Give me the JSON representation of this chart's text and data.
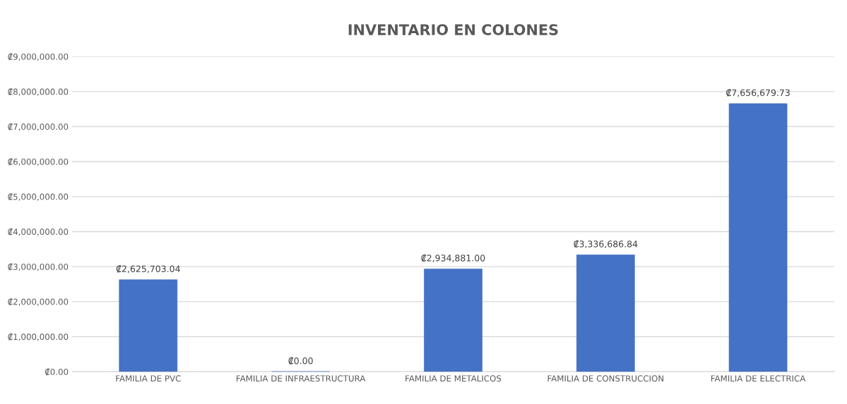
{
  "chart_data": {
    "type": "bar",
    "title": "INVENTARIO EN COLONES",
    "categories": [
      "FAMILIA DE PVC",
      "FAMILIA DE INFRAESTRUCTURA",
      "FAMILIA DE METALICOS",
      "FAMILIA DE CONSTRUCCION",
      "FAMILIA DE ELECTRICA"
    ],
    "values": [
      2625703.04,
      0,
      2934881.0,
      3336686.84,
      7656679.73
    ],
    "value_labels": [
      "₡2,625,703.04",
      "₡0.00",
      "₡2,934,881.00",
      "₡3,336,686.84",
      "₡7,656,679.73"
    ],
    "color": "#4472c4",
    "ylim": [
      0,
      9000000
    ],
    "yticks": [
      {
        "value": 0,
        "label": "₡0.00"
      },
      {
        "value": 1000000,
        "label": "₡1,000,000.00"
      },
      {
        "value": 2000000,
        "label": "₡2,000,000.00"
      },
      {
        "value": 3000000,
        "label": "₡3,000,000.00"
      },
      {
        "value": 4000000,
        "label": "₡4,000,000.00"
      },
      {
        "value": 5000000,
        "label": "₡5,000,000.00"
      },
      {
        "value": 6000000,
        "label": "₡6,000,000.00"
      },
      {
        "value": 7000000,
        "label": "₡7,000,000.00"
      },
      {
        "value": 8000000,
        "label": "₡8,000,000.00"
      },
      {
        "value": 9000000,
        "label": "₡9,000,000.00"
      }
    ],
    "grid": "y",
    "legend": false
  }
}
